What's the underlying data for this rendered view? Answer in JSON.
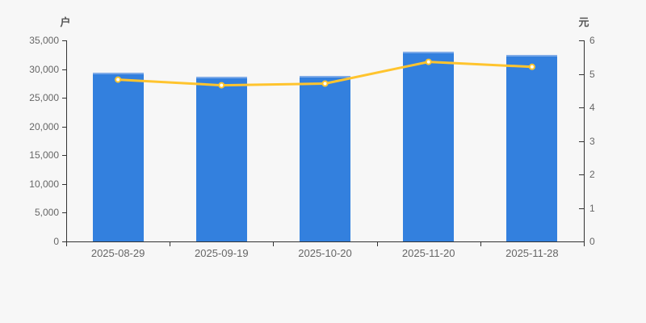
{
  "chart_data": {
    "type": "bar",
    "subtype": "bar+line dual axis",
    "title": "",
    "categories": [
      "2025-08-29",
      "2025-09-19",
      "2025-10-20",
      "2025-11-20",
      "2025-11-28"
    ],
    "series": [
      {
        "name": "户",
        "type": "bar",
        "axis": "left",
        "values": [
          29400,
          28700,
          28800,
          33000,
          32500
        ]
      },
      {
        "name": "元",
        "type": "line",
        "axis": "right",
        "values": [
          4.83,
          4.66,
          4.71,
          5.36,
          5.21
        ]
      }
    ],
    "left_axis": {
      "unit": "户",
      "min": 0,
      "max": 35000,
      "tick_step": 5000,
      "ticks": [
        "0",
        "5,000",
        "10,000",
        "15,000",
        "20,000",
        "25,000",
        "30,000",
        "35,000"
      ]
    },
    "right_axis": {
      "unit": "元",
      "min": 0,
      "max": 6,
      "tick_step": 1,
      "ticks": [
        "0",
        "1",
        "2",
        "3",
        "4",
        "5",
        "6"
      ]
    },
    "legend": "none",
    "grid": "off",
    "colors": {
      "background": "#f7f7f7",
      "bar": "#3380de",
      "bar_top_border": "#7fabe8",
      "line": "#ffc42e",
      "marker_fill": "#ffffff",
      "axis": "#333333",
      "tick_text": "#666666",
      "unit_text": "#555555"
    }
  }
}
